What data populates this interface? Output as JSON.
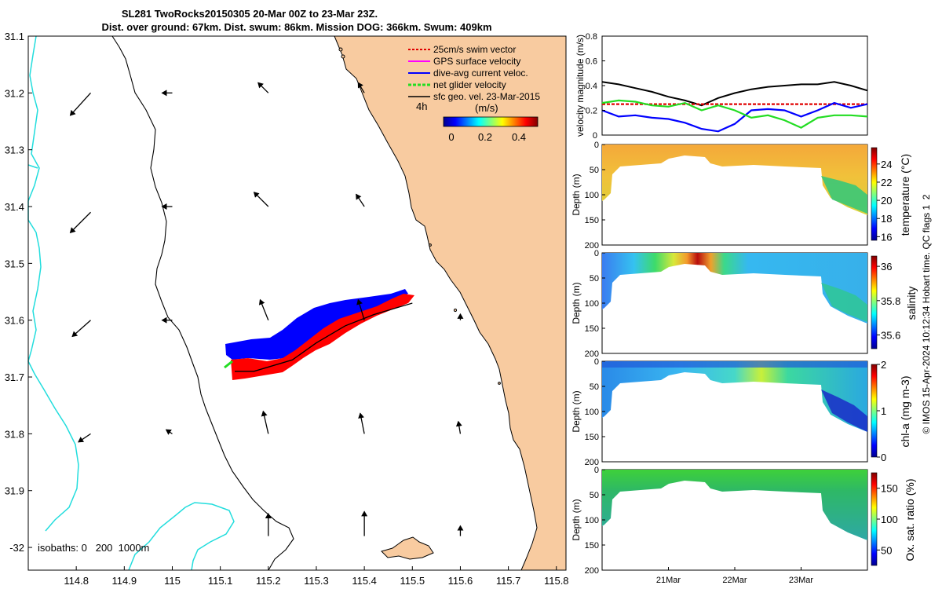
{
  "title": {
    "line1": "SL281 TwoRocks20150305 20-Mar 00Z to 23-Mar 23Z.",
    "line2": "Dist. over ground: 67km. Dist. swum: 86km. Mission DOG: 366km. Swum: 409km"
  },
  "map": {
    "legend": [
      {
        "label": "25cm/s swim vector",
        "color": "#e00000"
      },
      {
        "label": "GPS surface velocity",
        "color": "#ff00ff"
      },
      {
        "label": "dive-avg current veloc.",
        "color": "#0000ff"
      },
      {
        "label": "net glider velocity",
        "color": "#00dd00"
      },
      {
        "label": "sfc geo. vel. 23-Mar-2015",
        "color": "#000000"
      }
    ],
    "time_label": "4h",
    "colorbar_title": "(m/s)",
    "colorbar_ticks": [
      "0",
      "0.2",
      "0.4"
    ],
    "isobaths_label": "isobaths: 0   200  1000m",
    "colors": {
      "land": "#f8cba0",
      "isobath_200": "#000000",
      "isobath_1000": "#22dddd",
      "dive_avg": "#0000ff",
      "swim": "#ff0000",
      "net": "#22dd22"
    }
  },
  "footer": "© IMOS 15-Apr-2024 10:12:34 Hobart time. QC flags 1  2",
  "chart_data": [
    {
      "type": "vector-map",
      "xlabel": "",
      "ylabel": "",
      "xlim": [
        114.7,
        115.82
      ],
      "ylim": [
        -32.04,
        -31.1
      ],
      "x_ticks": [
        114.8,
        114.9,
        115.0,
        115.1,
        115.2,
        115.3,
        115.4,
        115.5,
        115.6,
        115.7,
        115.8
      ],
      "x_tick_labels": [
        "114.8",
        "114.9",
        "115",
        "115.1",
        "115.2",
        "115.3",
        "115.4",
        "115.5",
        "115.6",
        "115.7",
        "115.8"
      ],
      "y_ticks": [
        -31.1,
        -31.2,
        -31.3,
        -31.4,
        -31.5,
        -31.6,
        -31.7,
        -31.8,
        -31.9,
        -32.0
      ],
      "y_tick_labels": [
        "31.1",
        "31.2",
        "31.3",
        "31.4",
        "31.5",
        "31.6",
        "31.7",
        "31.8",
        "31.9",
        "-32"
      ],
      "glider_track": [
        [
          115.13,
          -31.69
        ],
        [
          115.17,
          -31.69
        ],
        [
          115.25,
          -31.67
        ],
        [
          115.3,
          -31.64
        ],
        [
          115.36,
          -31.61
        ],
        [
          115.42,
          -31.59
        ],
        [
          115.5,
          -31.57
        ]
      ],
      "geostrophic_vectors": [
        {
          "lon": 114.83,
          "lat": -31.2,
          "u": -0.2,
          "v": -0.22
        },
        {
          "lon": 114.83,
          "lat": -31.41,
          "u": -0.2,
          "v": -0.2
        },
        {
          "lon": 114.83,
          "lat": -31.6,
          "u": -0.18,
          "v": -0.16
        },
        {
          "lon": 114.83,
          "lat": -31.8,
          "u": -0.12,
          "v": -0.08
        },
        {
          "lon": 115.0,
          "lat": -31.2,
          "u": -0.1,
          "v": 0.0
        },
        {
          "lon": 115.0,
          "lat": -31.4,
          "u": -0.1,
          "v": 0.0
        },
        {
          "lon": 115.0,
          "lat": -31.6,
          "u": -0.1,
          "v": 0.0
        },
        {
          "lon": 115.0,
          "lat": -31.8,
          "u": -0.06,
          "v": 0.04
        },
        {
          "lon": 115.2,
          "lat": -31.2,
          "u": -0.1,
          "v": 0.1
        },
        {
          "lon": 115.2,
          "lat": -31.4,
          "u": -0.14,
          "v": 0.14
        },
        {
          "lon": 115.2,
          "lat": -31.6,
          "u": -0.08,
          "v": 0.2
        },
        {
          "lon": 115.2,
          "lat": -31.8,
          "u": -0.05,
          "v": 0.22
        },
        {
          "lon": 115.2,
          "lat": -31.98,
          "u": 0.0,
          "v": 0.22
        },
        {
          "lon": 115.4,
          "lat": -31.2,
          "u": -0.06,
          "v": 0.1
        },
        {
          "lon": 115.4,
          "lat": -31.4,
          "u": -0.08,
          "v": 0.12
        },
        {
          "lon": 115.4,
          "lat": -31.6,
          "u": -0.06,
          "v": 0.2
        },
        {
          "lon": 115.4,
          "lat": -31.8,
          "u": -0.04,
          "v": 0.2
        },
        {
          "lon": 115.4,
          "lat": -31.98,
          "u": 0.0,
          "v": 0.24
        },
        {
          "lon": 115.6,
          "lat": -31.6,
          "u": 0.0,
          "v": 0.06
        },
        {
          "lon": 115.6,
          "lat": -31.8,
          "u": -0.02,
          "v": 0.12
        },
        {
          "lon": 115.6,
          "lat": -31.98,
          "u": 0.0,
          "v": 0.1
        }
      ]
    },
    {
      "type": "line",
      "ylabel": "velocity magnitude (m/s)",
      "ylim": [
        0,
        0.8
      ],
      "y_ticks": [
        0,
        0.2,
        0.4,
        0.6,
        0.8
      ],
      "x_tick_labels": [],
      "series": [
        {
          "name": "sfc geo. vel.",
          "color": "#000000",
          "x": [
            0,
            0.25,
            0.5,
            0.75,
            1.0,
            1.25,
            1.5,
            1.75,
            2.0,
            2.25,
            2.5,
            2.75,
            3.0,
            3.25,
            3.5,
            3.75,
            4.0
          ],
          "values": [
            0.43,
            0.41,
            0.38,
            0.35,
            0.31,
            0.28,
            0.24,
            0.3,
            0.34,
            0.37,
            0.39,
            0.4,
            0.41,
            0.41,
            0.43,
            0.4,
            0.36
          ]
        },
        {
          "name": "25cm/s swim vector",
          "color": "#e00000",
          "x": [
            0,
            0.5,
            1.0,
            1.5,
            2.0,
            2.5,
            3.0,
            3.5,
            4.0
          ],
          "values": [
            0.25,
            0.25,
            0.25,
            0.25,
            0.25,
            0.25,
            0.25,
            0.25,
            0.25
          ]
        },
        {
          "name": "dive-avg current veloc.",
          "color": "#0000ff",
          "x": [
            0,
            0.25,
            0.5,
            0.75,
            1.0,
            1.25,
            1.5,
            1.75,
            2.0,
            2.25,
            2.5,
            2.75,
            3.0,
            3.25,
            3.5,
            3.75,
            4.0
          ],
          "values": [
            0.2,
            0.15,
            0.16,
            0.14,
            0.13,
            0.1,
            0.05,
            0.03,
            0.09,
            0.2,
            0.21,
            0.2,
            0.15,
            0.2,
            0.26,
            0.22,
            0.25
          ]
        },
        {
          "name": "net glider velocity",
          "color": "#22dd22",
          "x": [
            0,
            0.25,
            0.5,
            0.75,
            1.0,
            1.25,
            1.5,
            1.75,
            2.0,
            2.25,
            2.5,
            2.75,
            3.0,
            3.25,
            3.5,
            3.75,
            4.0
          ],
          "values": [
            0.26,
            0.28,
            0.27,
            0.24,
            0.23,
            0.26,
            0.2,
            0.24,
            0.2,
            0.14,
            0.16,
            0.12,
            0.06,
            0.14,
            0.16,
            0.16,
            0.15
          ]
        }
      ]
    },
    {
      "type": "heatmap",
      "ylabel": "Depth (m)",
      "ylim": [
        200,
        0
      ],
      "y_ticks": [
        0,
        50,
        100,
        150,
        200
      ],
      "colorbar_label": "temperature (°C)",
      "colorbar_ticks": [
        16,
        18,
        20,
        22,
        24
      ],
      "colorbar_range": [
        15.6,
        25.8
      ],
      "x_tick_labels": []
    },
    {
      "type": "heatmap",
      "ylabel": "Depth (m)",
      "ylim": [
        200,
        0
      ],
      "y_ticks": [
        0,
        50,
        100,
        150,
        200
      ],
      "colorbar_label": "salinity",
      "colorbar_ticks": [
        35.6,
        35.8,
        36
      ],
      "colorbar_range": [
        35.52,
        36.06
      ],
      "x_tick_labels": []
    },
    {
      "type": "heatmap",
      "ylabel": "Depth (m)",
      "ylim": [
        200,
        0
      ],
      "y_ticks": [
        0,
        50,
        100,
        150,
        200
      ],
      "colorbar_label": "chl-a (mg m-3)",
      "colorbar_ticks": [
        0,
        1,
        2
      ],
      "colorbar_range": [
        0,
        2
      ],
      "x_tick_labels": []
    },
    {
      "type": "heatmap",
      "ylabel": "Depth (m)",
      "ylim": [
        200,
        0
      ],
      "y_ticks": [
        0,
        50,
        100,
        150,
        200
      ],
      "colorbar_label": "Ox. sat. ratio (%)",
      "colorbar_ticks": [
        50,
        100,
        150
      ],
      "colorbar_range": [
        25,
        175
      ],
      "x_tick_labels": [
        "21Mar",
        "22Mar",
        "23Mar"
      ],
      "x_ticks": [
        1.0,
        2.0,
        3.0
      ],
      "xlim": [
        0,
        4.0
      ]
    }
  ]
}
